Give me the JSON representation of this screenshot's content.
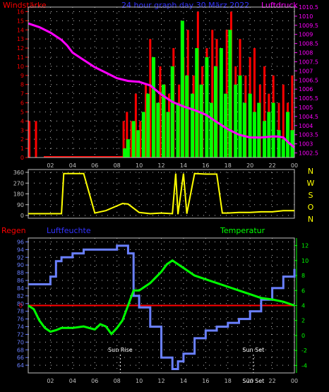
{
  "header": {
    "left_label": "Windstärke",
    "title": "24 hour graph day 30 März 2022",
    "right_label": "Luftdruck"
  },
  "colors": {
    "background": "#000000",
    "red": "#ff0000",
    "magenta": "#ff00ff",
    "blue": "#3333ff",
    "green": "#00ff00",
    "yellow": "#ffff00",
    "dots": "#c0c0c0",
    "bluefill": "#6a80ff",
    "greenaxis": "#00ff00"
  },
  "x_ticks": [
    "02",
    "04",
    "06",
    "08",
    "10",
    "12",
    "14",
    "16",
    "18",
    "20",
    "22",
    "00"
  ],
  "chart_data": [
    {
      "type": "line",
      "panel": "wind-pressure",
      "xlim": [
        0,
        24
      ],
      "left_axis": {
        "label": "Windstärke",
        "ylim": [
          0,
          16.5
        ],
        "ticks": [
          "0",
          "1",
          "2",
          "3",
          "4",
          "5",
          "6",
          "7",
          "8",
          "9",
          "10",
          "11",
          "12",
          "13",
          "14",
          "15",
          "16"
        ]
      },
      "right_axis": {
        "label": "Luftdruck",
        "ylim": [
          1002.25,
          1010.5
        ],
        "ticks": [
          "1002.5",
          "1003",
          "1003.5",
          "1004",
          "1004.5",
          "1005",
          "1005.5",
          "1006",
          "1006.5",
          "1007",
          "1007.5",
          "1008",
          "1008.5",
          "1009",
          "1009.5",
          "1010",
          "1010.5"
        ]
      },
      "series": [
        {
          "axis": "right",
          "x": [
            0,
            1,
            2,
            3,
            3.5,
            4,
            5,
            6,
            7,
            8,
            9,
            10,
            11,
            12,
            13,
            14,
            15,
            16,
            17,
            18,
            19,
            20,
            21,
            22,
            22.5,
            23,
            23.5,
            24
          ],
          "values": [
            1009.6,
            1009.4,
            1009.1,
            1008.7,
            1008.4,
            1008.0,
            1007.6,
            1007.2,
            1006.9,
            1006.6,
            1006.45,
            1006.4,
            1006.2,
            1005.7,
            1005.3,
            1005.05,
            1004.85,
            1004.6,
            1004.2,
            1003.8,
            1003.5,
            1003.35,
            1003.35,
            1003.4,
            1003.4,
            1003.35,
            1003.05,
            1002.8
          ]
        },
        {
          "axis": "left",
          "x": [
            0.1,
            0.4,
            0.7,
            0.9,
            1.4,
            8.6,
            8.9,
            9.3,
            9.7,
            10.1,
            10.6,
            11.0,
            11.4,
            11.9,
            12.3,
            12.7,
            13.1,
            13.6,
            14.0,
            14.4,
            14.9,
            15.3,
            15.7,
            16.1,
            16.6,
            17.0,
            17.4,
            17.9,
            18.3,
            18.7,
            19.1,
            19.6,
            20.0,
            20.4,
            20.9,
            21.3,
            21.7,
            22.1,
            22.6,
            23.0,
            23.4,
            23.8
          ],
          "values": [
            4,
            0,
            4,
            0,
            0,
            4,
            5,
            4,
            7,
            4,
            8,
            13,
            7,
            10,
            8,
            7,
            12,
            8,
            11,
            14,
            9,
            16,
            10,
            12,
            14,
            13,
            9,
            14,
            16,
            10,
            13,
            9,
            11,
            12,
            8,
            10,
            7,
            9,
            6,
            8,
            6,
            9
          ]
        },
        {
          "axis": "left",
          "x": [
            8.7,
            9.0,
            9.5,
            9.9,
            10.4,
            10.8,
            11.3,
            11.7,
            12.2,
            12.6,
            13.0,
            13.5,
            13.9,
            14.3,
            14.8,
            15.2,
            15.6,
            16.1,
            16.5,
            16.9,
            17.4,
            17.8,
            18.2,
            18.7,
            19.1,
            19.5,
            20.0,
            20.4,
            20.8,
            21.3,
            21.7,
            22.1,
            22.6,
            23.0,
            23.4,
            23.8
          ],
          "values": [
            1,
            2,
            4,
            3,
            5,
            7,
            11,
            6,
            8,
            5,
            10,
            6,
            15,
            9,
            7,
            12,
            8,
            11,
            6,
            10,
            12,
            7,
            14,
            8,
            9,
            6,
            7,
            5,
            6,
            4,
            5,
            6,
            3,
            2,
            5,
            3
          ]
        }
      ]
    },
    {
      "type": "line",
      "panel": "wind-direction",
      "xlim": [
        0,
        24
      ],
      "ylim": [
        0,
        360
      ],
      "left_ticks": [
        "360",
        "270",
        "180",
        "90",
        "0"
      ],
      "right_labels": [
        "N",
        "W",
        "S",
        "O",
        "N"
      ],
      "series": [
        {
          "x": [
            0,
            2,
            3,
            3.2,
            5,
            6,
            7,
            8.5,
            9,
            10,
            11,
            12,
            13,
            13.3,
            13.5,
            14,
            14.3,
            15,
            16,
            17,
            17.5,
            18,
            19,
            20,
            21,
            22,
            23,
            24
          ],
          "values": [
            15,
            15,
            15,
            350,
            350,
            20,
            40,
            100,
            95,
            25,
            15,
            20,
            15,
            350,
            10,
            350,
            15,
            350,
            345,
            345,
            20,
            20,
            25,
            25,
            30,
            30,
            40,
            40
          ]
        }
      ]
    },
    {
      "type": "line",
      "panel": "rain-humidity-temperature",
      "xlim": [
        0,
        24
      ],
      "labels": {
        "rain": "Regen",
        "humidity": "Luftfeuchte",
        "temperature": "Temperatur"
      },
      "rain_axis": {
        "ticks": [
          "0"
        ],
        "value": 0
      },
      "humidity_axis": {
        "ylim": [
          62,
          97
        ],
        "ticks": [
          "96",
          "94",
          "92",
          "90",
          "88",
          "86",
          "84",
          "82",
          "80",
          "78",
          "76",
          "74",
          "72",
          "70",
          "68",
          "66",
          "64"
        ]
      },
      "temperature_axis": {
        "ylim": [
          -5,
          13
        ],
        "ticks": [
          "12",
          "10",
          "8",
          "6",
          "4",
          "2",
          "0",
          "-2",
          "-4"
        ]
      },
      "annotations": [
        "Sun Rise",
        "Sun Set",
        "Sun Set"
      ],
      "series": [
        {
          "name": "Luftfeuchte",
          "x": [
            0,
            1,
            2,
            2.5,
            3,
            4,
            5,
            6,
            7,
            8,
            8.5,
            9,
            9.5,
            10,
            11,
            12,
            13,
            13.5,
            14,
            15,
            16,
            17,
            18,
            19,
            20,
            21,
            22,
            23,
            24
          ],
          "values": [
            85,
            85,
            87,
            91,
            92,
            93,
            94,
            94,
            94,
            95,
            95,
            93,
            82,
            79,
            74,
            66,
            63,
            65,
            67,
            71,
            73,
            74,
            75,
            76,
            78,
            81,
            84,
            87,
            89
          ]
        },
        {
          "name": "Temperatur",
          "x": [
            0,
            0.5,
            1,
            1.5,
            2,
            2.5,
            3,
            4,
            5,
            6,
            6.5,
            7,
            7.5,
            8,
            8.5,
            9,
            9.5,
            10,
            11,
            12,
            12.5,
            13,
            14,
            15,
            16,
            17,
            18,
            19,
            20,
            21,
            22,
            23,
            24
          ],
          "values": [
            4,
            3.5,
            2,
            1,
            0.5,
            0.7,
            1,
            1,
            1.2,
            0.8,
            1.5,
            1.2,
            0.2,
            1,
            2,
            4,
            6,
            6,
            7,
            8.5,
            9.5,
            10,
            9,
            8,
            7.5,
            7,
            6.5,
            6,
            5.5,
            5,
            4.8,
            4.5,
            4
          ]
        }
      ]
    }
  ]
}
